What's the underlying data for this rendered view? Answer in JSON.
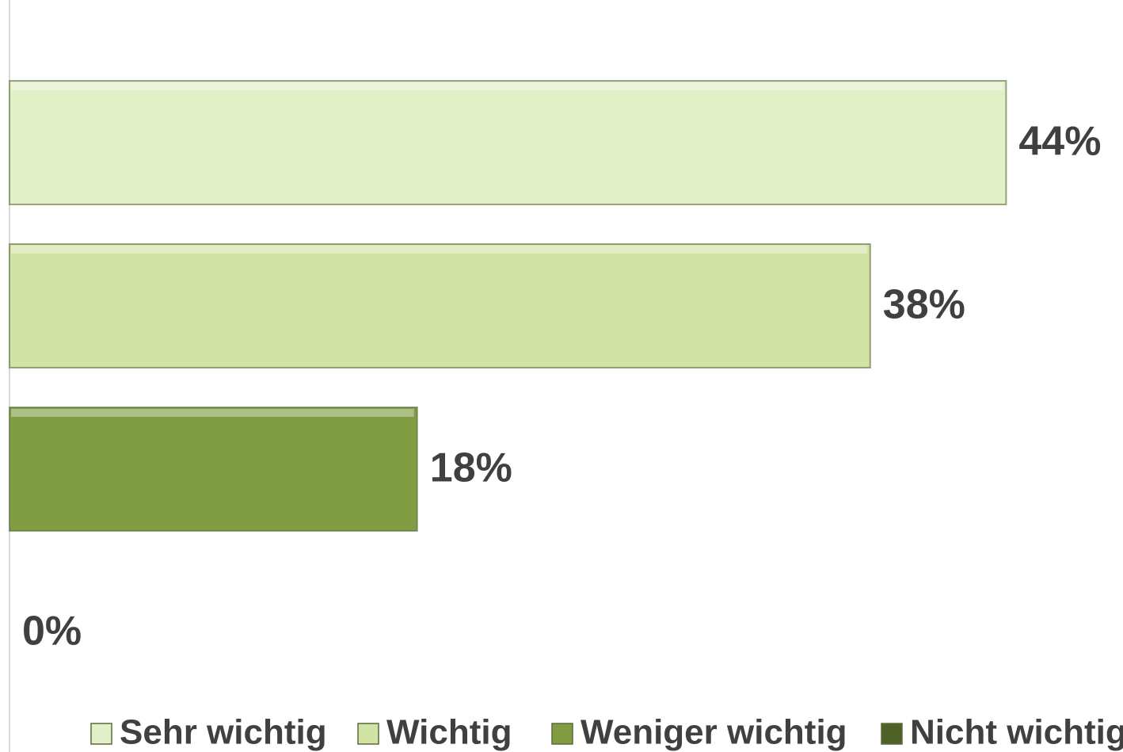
{
  "chart_data": {
    "type": "bar",
    "orientation": "horizontal",
    "categories": [
      null
    ],
    "series": [
      {
        "name": "Sehr wichtig",
        "color": "#e2f0c8",
        "values": [
          44
        ],
        "value_labels": [
          "44%"
        ]
      },
      {
        "name": "Wichtig",
        "color": "#d2e3a6",
        "values": [
          38
        ],
        "value_labels": [
          "38%"
        ]
      },
      {
        "name": "Weniger wichtig",
        "color": "#809d44",
        "values": [
          18
        ],
        "value_labels": [
          "18%"
        ]
      },
      {
        "name": "Nicht wichtig",
        "color": "#4e6228",
        "values": [
          0
        ],
        "value_labels": [
          "0%"
        ]
      }
    ],
    "xlim": [
      0,
      50
    ],
    "legend": "bottom"
  }
}
